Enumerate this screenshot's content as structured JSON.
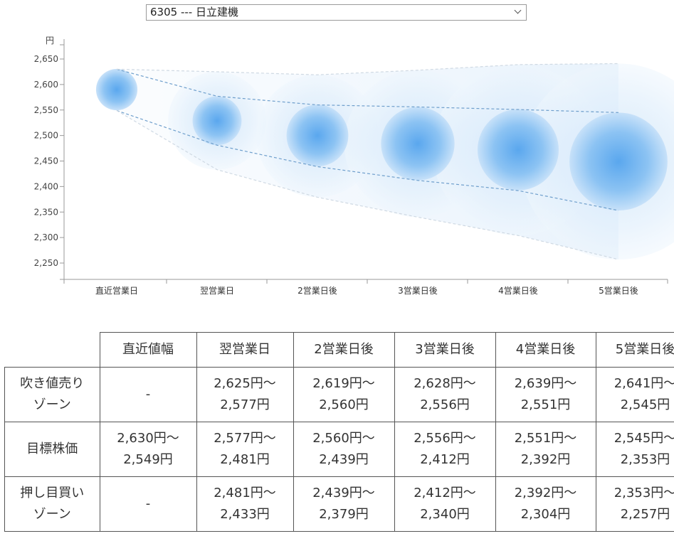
{
  "selector": {
    "value": "6305 --- 日立建機"
  },
  "chart_data": {
    "type": "bubble-range",
    "y_unit_label": "円",
    "ylim": [
      2230,
      2660
    ],
    "yticks": [
      2250,
      2300,
      2350,
      2400,
      2450,
      2500,
      2550,
      2600,
      2650
    ],
    "ytick_labels": [
      "2,250",
      "2,300",
      "2,350",
      "2,400",
      "2,450",
      "2,500",
      "2,550",
      "2,600",
      "2,650"
    ],
    "categories": [
      "直近営業日",
      "翌営業日",
      "2営業日後",
      "3営業日後",
      "4営業日後",
      "5営業日後"
    ],
    "target_center": [
      2590,
      2529,
      2500,
      2484,
      2472,
      2449
    ],
    "target_high": [
      2630,
      2577,
      2560,
      2556,
      2551,
      2545
    ],
    "target_low": [
      2549,
      2481,
      2439,
      2412,
      2392,
      2353
    ],
    "sell_high": [
      2630,
      2625,
      2619,
      2628,
      2639,
      2641
    ],
    "buy_low": [
      2549,
      2433,
      2379,
      2340,
      2304,
      2257
    ],
    "colors": {
      "core": "#4f9ce8",
      "halo": "#dcecfb",
      "dash": "#6f9fcc",
      "dash_light": "#cfd9e3"
    }
  },
  "table": {
    "headers": [
      "",
      "直近値幅",
      "翌営業日",
      "2営業日後",
      "3営業日後",
      "4営業日後",
      "5営業日後"
    ],
    "rows": [
      {
        "label": [
          "吹き値売り",
          "ゾーン"
        ],
        "cells": [
          [
            "-"
          ],
          [
            "2,625円～",
            "2,577円"
          ],
          [
            "2,619円～",
            "2,560円"
          ],
          [
            "2,628円～",
            "2,556円"
          ],
          [
            "2,639円～",
            "2,551円"
          ],
          [
            "2,641円～",
            "2,545円"
          ]
        ]
      },
      {
        "label": [
          "目標株価"
        ],
        "cells": [
          [
            "2,630円～",
            "2,549円"
          ],
          [
            "2,577円～",
            "2,481円"
          ],
          [
            "2,560円～",
            "2,439円"
          ],
          [
            "2,556円～",
            "2,412円"
          ],
          [
            "2,551円～",
            "2,392円"
          ],
          [
            "2,545円～",
            "2,353円"
          ]
        ]
      },
      {
        "label": [
          "押し目買い",
          "ゾーン"
        ],
        "cells": [
          [
            "-"
          ],
          [
            "2,481円～",
            "2,433円"
          ],
          [
            "2,439円～",
            "2,379円"
          ],
          [
            "2,412円～",
            "2,340円"
          ],
          [
            "2,392円～",
            "2,304円"
          ],
          [
            "2,353円～",
            "2,257円"
          ]
        ]
      }
    ]
  }
}
